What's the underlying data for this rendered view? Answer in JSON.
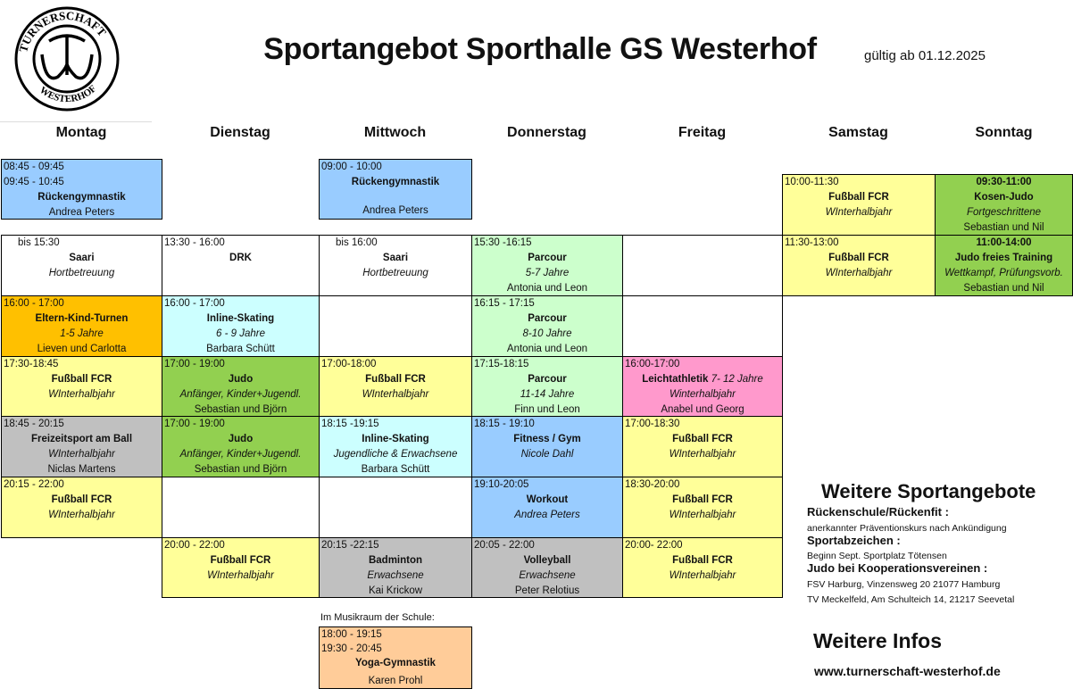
{
  "header": {
    "title": "Sportangebot Sporthalle GS Westerhof",
    "valid_from": "gültig ab 01.12.2025",
    "logo_text": "TURNERSCHAFT WESTERHOF"
  },
  "day_headers": [
    "Montag",
    "Dienstag",
    "Mittwoch",
    "Donnerstag",
    "Freitag",
    "Samstag",
    "Sonntag"
  ],
  "colors": {
    "blue": "#99ccff",
    "yellow": "#ffff99",
    "orange": "#ffc000",
    "green": "#92d050",
    "lightgreen": "#ccffcc",
    "cyan": "#ccffff",
    "gray": "#c0c0c0",
    "pink": "#ff99cc",
    "peach": "#ffcc99",
    "white": "#ffffff"
  },
  "days": {
    "montag": [
      {
        "color": "blue",
        "times": [
          "08:45 - 09:45",
          "09:45 - 10:45"
        ],
        "title": "Rückengymnastik",
        "person": "Andrea Peters"
      },
      {
        "color": "white",
        "times": [
          "bis 15:30"
        ],
        "time_style": "indent",
        "title": "Saari",
        "subtitle": "Hortbetreuung"
      },
      {
        "color": "orange",
        "times": [
          "16:00 - 17:00"
        ],
        "title": "Eltern-Kind-Turnen",
        "subtitle": "1-5 Jahre",
        "person": "Lieven und Carlotta"
      },
      {
        "color": "yellow",
        "times": [
          "17:30-18:45"
        ],
        "title": "Fußball FCR",
        "subtitle": "WInterhalbjahr"
      },
      {
        "color": "gray",
        "times": [
          "18:45 - 20:15"
        ],
        "title": "Freizeitsport am Ball",
        "subtitle": "WInterhalbjahr",
        "person": "Niclas Martens"
      },
      {
        "color": "yellow",
        "times": [
          "20:15 - 22:00"
        ],
        "title": "Fußball FCR",
        "subtitle": "WInterhalbjahr"
      }
    ],
    "dienstag": [
      {
        "color": "white",
        "times": [
          "13:30 - 16:00"
        ],
        "title": "DRK"
      },
      {
        "color": "cyan",
        "times": [
          "16:00 - 17:00"
        ],
        "title": "Inline-Skating",
        "subtitle": "6 - 9 Jahre",
        "person": "Barbara Schütt"
      },
      {
        "color": "green",
        "times": [
          "17:00 - 19:00"
        ],
        "title": "Judo",
        "subtitle": "Anfänger, Kinder+Jugendl.",
        "person": "Sebastian und Björn"
      },
      {
        "color": "green",
        "times": [
          "17:00 - 19:00"
        ],
        "title": "Judo",
        "subtitle": "Anfänger, Kinder+Jugendl.",
        "person": "Sebastian und  Björn"
      },
      {
        "color": "yellow",
        "times": [
          "20:00 - 22:00"
        ],
        "title": "Fußball FCR",
        "subtitle": "WInterhalbjahr"
      }
    ],
    "mittwoch": [
      {
        "color": "blue",
        "times": [
          "09:00 - 10:00"
        ],
        "title": "Rückengymnastik",
        "person": "Andrea Peters"
      },
      {
        "color": "white",
        "times": [
          "bis 16:00"
        ],
        "time_style": "indent",
        "title": "Saari",
        "subtitle": "Hortbetreuung"
      },
      {
        "color": "yellow",
        "times": [
          "17:00-18:00"
        ],
        "title": "Fußball FCR",
        "subtitle": "WInterhalbjahr"
      },
      {
        "color": "cyan",
        "times": [
          "18:15 -19:15"
        ],
        "title": "Inline-Skating",
        "subtitle": "Jugendliche & Erwachsene",
        "person": "Barbara Schütt"
      },
      {
        "color": "gray",
        "times": [
          "20:15 -22:15"
        ],
        "title": "Badminton",
        "subtitle": "Erwachsene",
        "person": "Kai Krickow"
      },
      {
        "color": "peach",
        "location": "Im Musikraum der Schule:",
        "times": [
          "18:00 - 19:15",
          "19:30 - 20:45"
        ],
        "title": "Yoga-Gymnastik",
        "person": "Karen Prohl"
      }
    ],
    "donnerstag": [
      {
        "color": "lightgreen",
        "times": [
          "15:30 -16:15"
        ],
        "title": "Parcour",
        "subtitle": "5-7 Jahre",
        "person": "Antonia und Leon"
      },
      {
        "color": "lightgreen",
        "times": [
          "16:15 - 17:15"
        ],
        "title": "Parcour",
        "subtitle": "8-10 Jahre",
        "person": "Antonia und Leon"
      },
      {
        "color": "lightgreen",
        "times": [
          "17:15-18:15"
        ],
        "title": "Parcour",
        "subtitle": "11-14 Jahre",
        "person": "Finn und Leon"
      },
      {
        "color": "blue",
        "times": [
          "18:15 - 19:10"
        ],
        "title": "Fitness / Gym",
        "person_italic": "Nicole Dahl"
      },
      {
        "color": "blue",
        "times": [
          "19:10-20:05"
        ],
        "title": "Workout",
        "person_italic": "Andrea Peters"
      },
      {
        "color": "gray",
        "times": [
          "20:05 - 22:00"
        ],
        "title": "Volleyball",
        "subtitle": "Erwachsene",
        "person": "Peter Relotius"
      }
    ],
    "freitag": [
      {
        "color": "pink",
        "times": [
          "16:00-17:00"
        ],
        "title": "Leichtathletik",
        "title_suffix": "7- 12 Jahre",
        "subtitle": "Winterhalbjahr",
        "person": "Anabel und Georg"
      },
      {
        "color": "yellow",
        "times": [
          "17:00-18:30"
        ],
        "title": "Fußball FCR",
        "subtitle": "WInterhalbjahr"
      },
      {
        "color": "yellow",
        "times": [
          "18:30-20:00"
        ],
        "title": "Fußball FCR",
        "subtitle": "WInterhalbjahr"
      },
      {
        "color": "yellow",
        "times": [
          "20:00- 22:00"
        ],
        "title": "Fußball FCR",
        "subtitle": "WInterhalbjahr"
      }
    ],
    "samstag": [
      {
        "color": "yellow",
        "times": [
          "10:00-11:30"
        ],
        "title": "Fußball FCR",
        "subtitle": "WInterhalbjahr"
      },
      {
        "color": "yellow",
        "times": [
          "11:30-13:00"
        ],
        "title": "Fußball FCR",
        "subtitle": "WInterhalbjahr"
      }
    ],
    "sonntag": [
      {
        "color": "green",
        "times": [
          "09:30-11:00"
        ],
        "time_style": "center",
        "title": "Kosen-Judo",
        "subtitle": "Fortgeschrittene",
        "person": "Sebastian und Nil"
      },
      {
        "color": "green",
        "times": [
          "11:00-14:00"
        ],
        "time_style": "center",
        "title": "Judo freies Training",
        "subtitle": "Wettkampf, Prüfungsvorb.",
        "person": "Sebastian und Nil"
      }
    ]
  },
  "side": {
    "heading": "Weitere Sportangebote",
    "items": [
      {
        "title": "Rückenschule/Rückenfit :",
        "lines": [
          "anerkannter Präventionskurs nach Ankündigung"
        ]
      },
      {
        "title": "Sportabzeichen :",
        "lines": [
          "Beginn Sept.  Sportplatz Tötensen"
        ]
      },
      {
        "title": "Judo bei Kooperationsvereinen :",
        "lines": [
          "FSV Harburg, Vinzensweg 20 21077 Hamburg",
          "TV Meckelfeld, Am Schulteich 14, 21217 Seevetal"
        ]
      }
    ],
    "info_heading": "Weitere Infos",
    "url": "www.turnerschaft-westerhof.de"
  }
}
